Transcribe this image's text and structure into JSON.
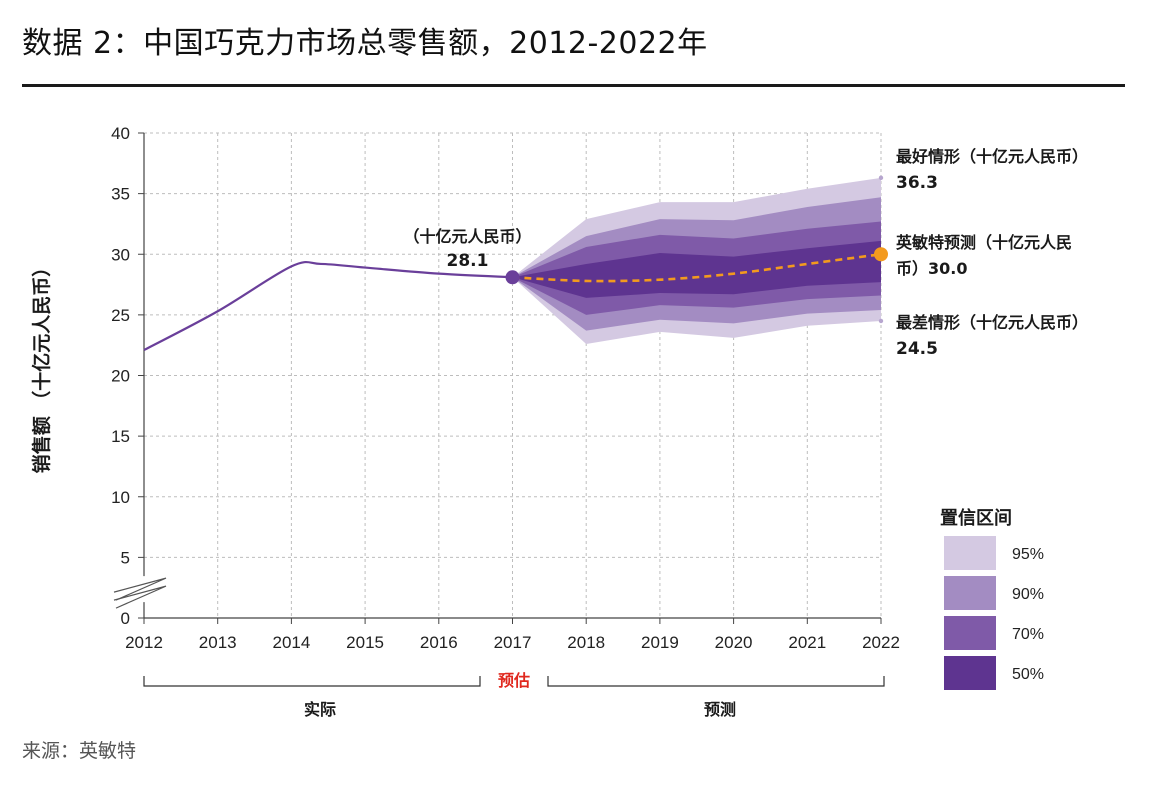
{
  "page": {
    "title": "数据 2：中国巧克力市场总零售额，2012-2022年",
    "source": "来源：英敏特"
  },
  "chart_data": {
    "type": "line",
    "ylabel": "销售额 （十亿元人民币）",
    "ylim": [
      0,
      40
    ],
    "yticks": [
      0,
      5,
      10,
      15,
      20,
      25,
      30,
      35,
      40
    ],
    "x": [
      2012,
      2013,
      2014,
      2015,
      2016,
      2017,
      2018,
      2019,
      2020,
      2021,
      2022
    ],
    "grid": true,
    "y_axis_break": true,
    "actual": {
      "x": [
        2012,
        2013,
        2014,
        2014.4,
        2015,
        2016,
        2017
      ],
      "values": [
        22.1,
        25.3,
        29.0,
        29.2,
        28.9,
        28.4,
        28.1
      ]
    },
    "forecast": {
      "x": [
        2017,
        2018,
        2019,
        2020,
        2021,
        2022
      ],
      "values": [
        28.1,
        27.8,
        27.9,
        28.4,
        29.2,
        30.0
      ],
      "color": "#f39a1e"
    },
    "fan_bands": [
      {
        "level": "95%",
        "color": "#d4c9e2",
        "upper": [
          28.1,
          32.9,
          34.3,
          34.3,
          35.4,
          36.3
        ],
        "lower": [
          28.1,
          22.6,
          23.6,
          23.1,
          24.1,
          24.5
        ]
      },
      {
        "level": "90%",
        "color": "#a38cc2",
        "upper": [
          28.1,
          31.5,
          32.9,
          32.8,
          33.9,
          34.7
        ],
        "lower": [
          28.1,
          23.7,
          24.6,
          24.3,
          25.1,
          25.4
        ]
      },
      {
        "level": "70%",
        "color": "#7f5aa8",
        "upper": [
          28.1,
          30.6,
          31.6,
          31.3,
          32.1,
          32.7
        ],
        "lower": [
          28.1,
          25.0,
          25.8,
          25.6,
          26.3,
          26.6
        ]
      },
      {
        "level": "50%",
        "color": "#5e3490",
        "upper": [
          28.1,
          29.2,
          30.1,
          29.8,
          30.5,
          31.1
        ],
        "lower": [
          28.1,
          26.4,
          26.8,
          26.7,
          27.4,
          27.7
        ]
      }
    ],
    "actual_color": "#6a3f9a",
    "point_2017": {
      "value": "28.1",
      "label": "（十亿元人民币）",
      "color": "#6a3f9a"
    },
    "annotations": {
      "best": {
        "title": "最好情形（十亿元人民币）",
        "value": "36.3",
        "y": 36.3
      },
      "mintel_line1": "英敏特预测（十亿元人民",
      "mintel_line2": "币）30.0",
      "mintel_y": 30.0,
      "worst": {
        "title": "最差情形（十亿元人民币）",
        "value": "24.5",
        "y": 24.5
      }
    },
    "legend": {
      "title": "置信区间",
      "items": [
        {
          "label": "95%",
          "color": "#d4c9e2"
        },
        {
          "label": "90%",
          "color": "#a38cc2"
        },
        {
          "label": "70%",
          "color": "#7f5aa8"
        },
        {
          "label": "50%",
          "color": "#5e3490"
        }
      ]
    },
    "periods": {
      "actual": "实际",
      "estimate": "预估",
      "forecast": "预测"
    }
  }
}
